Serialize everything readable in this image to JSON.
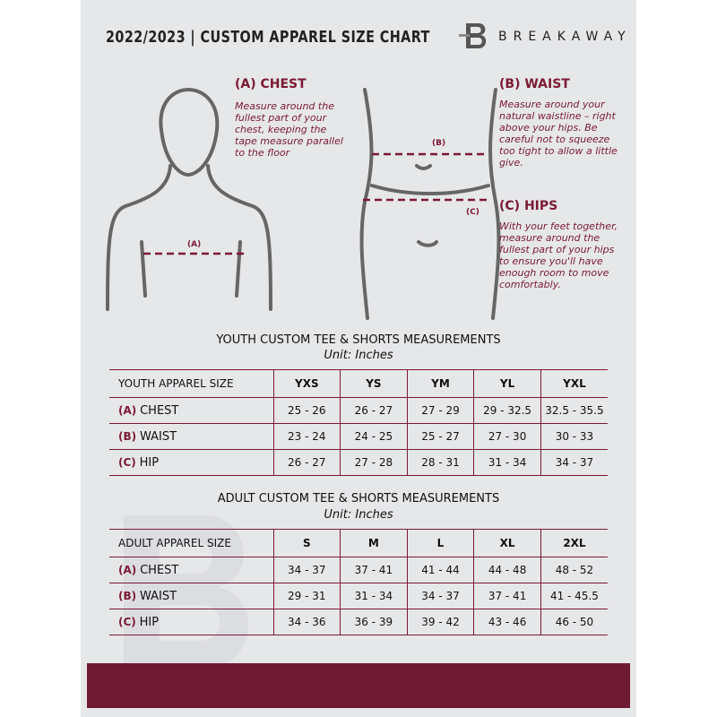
{
  "header": {
    "title": "2022/2023  |  CUSTOM APPAREL SIZE CHART",
    "brand": "BREAKAWAY"
  },
  "measures": {
    "chest": {
      "title": "(A) CHEST",
      "desc": "Measure around the fullest part of your chest, keeping the tape measure parallel to the floor",
      "tag": "(A)"
    },
    "waist": {
      "title": "(B) WAIST",
      "desc": "Measure around your natural waistline – right above your hips. Be careful not to squeeze too tight to allow a little give.",
      "tag": "(B)"
    },
    "hips": {
      "title": "(C) HIPS",
      "desc": "With your feet together, measure around the fullest part of your hips to ensure you'll have enough room to move comfortably.",
      "tag": "(C)"
    }
  },
  "youth": {
    "title": "YOUTH CUSTOM TEE & SHORTS MEASUREMENTS",
    "unit": "Unit: Inches",
    "header": "YOUTH APPAREL SIZE",
    "sizes": [
      "YXS",
      "YS",
      "YM",
      "YL",
      "YXL"
    ],
    "rows": [
      {
        "letter": "(A)",
        "label": "CHEST",
        "values": [
          "25 - 26",
          "26 - 27",
          "27 - 29",
          "29 - 32.5",
          "32.5 - 35.5"
        ]
      },
      {
        "letter": "(B)",
        "label": "WAIST",
        "values": [
          "23 - 24",
          "24 - 25",
          "25 - 27",
          "27 - 30",
          "30 - 33"
        ]
      },
      {
        "letter": "(C)",
        "label": "HIP",
        "values": [
          "26 - 27",
          "27 - 28",
          "28 - 31",
          "31 - 34",
          "34 - 37"
        ]
      }
    ]
  },
  "adult": {
    "title": "ADULT CUSTOM TEE & SHORTS MEASUREMENTS",
    "unit": "Unit: Inches",
    "header": "ADULT APPAREL SIZE",
    "sizes": [
      "S",
      "M",
      "L",
      "XL",
      "2XL"
    ],
    "rows": [
      {
        "letter": "(A)",
        "label": "CHEST",
        "values": [
          "34 - 37",
          "37 - 41",
          "41 - 44",
          "44 - 48",
          "48 - 52"
        ]
      },
      {
        "letter": "(B)",
        "label": "WAIST",
        "values": [
          "29 - 31",
          "31 - 34",
          "34 - 37",
          "37 - 41",
          "41 - 45.5"
        ]
      },
      {
        "letter": "(C)",
        "label": "HIP",
        "values": [
          "34 - 36",
          "36 - 39",
          "39 - 42",
          "43 - 46",
          "46 - 50"
        ]
      }
    ]
  },
  "colors": {
    "accent": "#7a1a33",
    "footer": "#6e1a33",
    "panel": "#e6e7e9"
  }
}
